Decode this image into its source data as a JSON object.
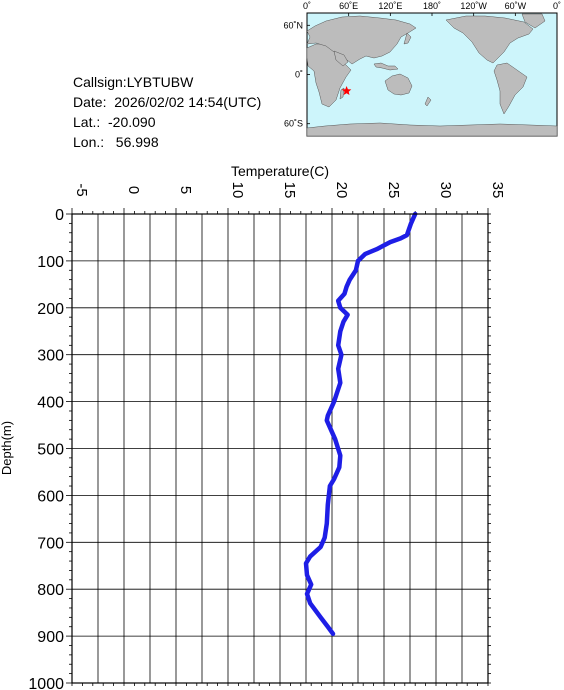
{
  "info": {
    "callsign": "Callsign:LYBTUBW",
    "date": "Date:  2026/02/02 14:54(UTC)",
    "lat": "Lat.:  -20.090",
    "lon": "Lon.:   56.998"
  },
  "map": {
    "top_labels": [
      "0˚",
      "60˚E",
      "120˚E",
      "180˚",
      "120˚W",
      "60˚W",
      "0˚"
    ],
    "left_labels": [
      "60˚N",
      "0˚",
      "60˚S"
    ],
    "ocean_color": "#cdf5fb",
    "land_color": "#bcbcbc",
    "marker": {
      "lat": -20.09,
      "lon": 56.998,
      "color": "#ff0000"
    }
  },
  "chart_data": {
    "type": "line",
    "xlabel": "Temperature(C)",
    "ylabel": "Depth(m)",
    "xlim": [
      -5,
      35
    ],
    "ylim": [
      0,
      1000
    ],
    "y_inverted": true,
    "x_ticks": [
      "-5",
      "0",
      "5",
      "10",
      "15",
      "20",
      "25",
      "30",
      "35"
    ],
    "y_ticks": [
      "0",
      "100",
      "200",
      "300",
      "400",
      "500",
      "600",
      "700",
      "800",
      "900",
      "1000"
    ],
    "grid": true,
    "series": [
      {
        "color": "#1e1ee6",
        "x": [
          28.0,
          27.6,
          27.2,
          26.6,
          25.6,
          24.3,
          23.2,
          22.5,
          22.3,
          21.7,
          21.4,
          21.2,
          20.6,
          20.8,
          21.5,
          21.1,
          20.8,
          20.6,
          20.9,
          20.6,
          20.8,
          20.2,
          19.6,
          19.5,
          20.3,
          20.8,
          20.7,
          20.2,
          19.8,
          19.6,
          19.5,
          19.3,
          18.9,
          17.9,
          17.5,
          17.6,
          18.0,
          17.6,
          17.9,
          18.9,
          19.6,
          20.1
        ],
        "y": [
          0,
          20,
          45,
          52,
          60,
          75,
          85,
          100,
          120,
          140,
          155,
          170,
          185,
          200,
          215,
          230,
          250,
          280,
          300,
          330,
          360,
          400,
          430,
          440,
          480,
          515,
          540,
          565,
          580,
          620,
          660,
          690,
          710,
          730,
          745,
          770,
          790,
          810,
          830,
          860,
          880,
          895
        ]
      }
    ]
  }
}
